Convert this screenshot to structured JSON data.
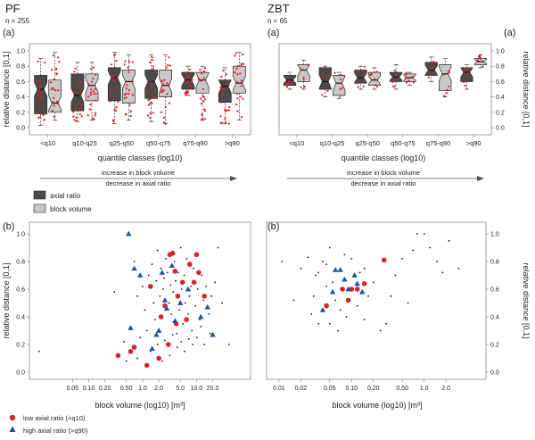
{
  "colors": {
    "axial": "#4a4a4a",
    "volume": "#c8c8c8",
    "point_red": "#dd1f26",
    "point_blue": "#1f4e9c",
    "point_black": "#111111"
  },
  "chart_data": [
    {
      "id": "pf-box",
      "type": "box",
      "title": "PF",
      "subtitle": "n = 255",
      "panel_label": "(a)",
      "xlabel": "quantile classes (log10)",
      "ylabel": "relative distance [0,1]",
      "ylim": [
        0,
        1
      ],
      "yticks": [
        "0.0",
        "0.2",
        "0.4",
        "0.6",
        "0.8",
        "1.0"
      ],
      "categories": [
        "<q10",
        "q10-q25",
        "q25-q50",
        "q50-q75",
        "q75-q90",
        ">q90"
      ],
      "series": [
        {
          "name": "axial ratio",
          "boxes": [
            {
              "min": 0.03,
              "q1": 0.18,
              "median": 0.5,
              "q3": 0.68,
              "max": 0.9
            },
            {
              "min": 0.08,
              "q1": 0.22,
              "median": 0.42,
              "q3": 0.7,
              "max": 0.85
            },
            {
              "min": 0.05,
              "q1": 0.35,
              "median": 0.65,
              "q3": 0.78,
              "max": 0.98
            },
            {
              "min": 0.08,
              "q1": 0.38,
              "median": 0.6,
              "q3": 0.75,
              "max": 0.95
            },
            {
              "min": 0.42,
              "q1": 0.5,
              "median": 0.62,
              "q3": 0.72,
              "max": 0.8
            },
            {
              "min": 0.05,
              "q1": 0.33,
              "median": 0.54,
              "q3": 0.62,
              "max": 0.78
            }
          ]
        },
        {
          "name": "block volume",
          "boxes": [
            {
              "min": 0.1,
              "q1": 0.2,
              "median": 0.32,
              "q3": 0.62,
              "max": 0.98
            },
            {
              "min": 0.1,
              "q1": 0.35,
              "median": 0.55,
              "q3": 0.7,
              "max": 0.85
            },
            {
              "min": 0.1,
              "q1": 0.32,
              "median": 0.6,
              "q3": 0.75,
              "max": 0.95
            },
            {
              "min": 0.05,
              "q1": 0.4,
              "median": 0.55,
              "q3": 0.75,
              "max": 0.95
            },
            {
              "min": 0.1,
              "q1": 0.45,
              "median": 0.62,
              "q3": 0.72,
              "max": 0.8
            },
            {
              "min": 0.1,
              "q1": 0.45,
              "median": 0.58,
              "q3": 0.8,
              "max": 0.98
            }
          ]
        }
      ]
    },
    {
      "id": "zbt-box",
      "type": "box",
      "title": "ZBT",
      "subtitle": "n = 65",
      "panel_label_left": "(a)",
      "panel_label_right": "(a)",
      "xlabel": "quantile classes (log10)",
      "ylabel": "relative distance [0,1]",
      "ylim": [
        0,
        1
      ],
      "yticks": [
        "0.0",
        "0.2",
        "0.4",
        "0.6",
        "0.8",
        "1.0"
      ],
      "categories": [
        "<q10",
        "q10-q25",
        "q25-q50",
        "q50-q75",
        "q75-q90",
        ">q90"
      ],
      "series": [
        {
          "name": "axial ratio",
          "boxes": [
            {
              "min": 0.5,
              "q1": 0.55,
              "median": 0.62,
              "q3": 0.68,
              "max": 0.72
            },
            {
              "min": 0.4,
              "q1": 0.5,
              "median": 0.6,
              "q3": 0.78,
              "max": 0.8
            },
            {
              "min": 0.5,
              "q1": 0.58,
              "median": 0.65,
              "q3": 0.75,
              "max": 0.8
            },
            {
              "min": 0.5,
              "q1": 0.6,
              "median": 0.66,
              "q3": 0.72,
              "max": 0.82
            },
            {
              "min": 0.6,
              "q1": 0.68,
              "median": 0.75,
              "q3": 0.85,
              "max": 0.92
            },
            {
              "min": 0.5,
              "q1": 0.6,
              "median": 0.72,
              "q3": 0.78,
              "max": 0.82
            }
          ]
        },
        {
          "name": "block volume",
          "boxes": [
            {
              "min": 0.5,
              "q1": 0.6,
              "median": 0.75,
              "q3": 0.82,
              "max": 0.88
            },
            {
              "min": 0.38,
              "q1": 0.42,
              "median": 0.58,
              "q3": 0.68,
              "max": 0.72
            },
            {
              "min": 0.5,
              "q1": 0.55,
              "median": 0.62,
              "q3": 0.72,
              "max": 0.78
            },
            {
              "min": 0.55,
              "q1": 0.6,
              "median": 0.65,
              "q3": 0.7,
              "max": 0.72
            },
            {
              "min": 0.4,
              "q1": 0.48,
              "median": 0.7,
              "q3": 0.82,
              "max": 0.9
            },
            {
              "min": 0.78,
              "q1": 0.82,
              "median": 0.86,
              "q3": 0.9,
              "max": 0.95
            }
          ]
        }
      ]
    },
    {
      "id": "pf-scatter",
      "type": "scatter",
      "panel_label": "(b)",
      "xlabel": "block volume (log10) [m³]",
      "ylabel": "relative distance [0,1]",
      "xscale": "log",
      "xlim": [
        0.01,
        80
      ],
      "ylim": [
        0,
        1
      ],
      "xticks": [
        {
          "v": 0.05,
          "label": "0.05"
        },
        {
          "v": 0.1,
          "label": "0.10"
        },
        {
          "v": 0.2,
          "label": "0.20"
        },
        {
          "v": 0.5,
          "label": "0.50"
        },
        {
          "v": 1,
          "label": "1.0"
        },
        {
          "v": 2,
          "label": "2.0"
        },
        {
          "v": 5,
          "label": "5.0"
        },
        {
          "v": 10,
          "label": "10.0"
        },
        {
          "v": 20,
          "label": "20.0"
        }
      ],
      "yticks": [
        "0.0",
        "0.2",
        "0.4",
        "0.6",
        "0.8",
        "1.0"
      ],
      "series": [
        {
          "name": "low axial ratio (<q10)",
          "marker": "circle",
          "points": [
            [
              0.35,
              0.12
            ],
            [
              0.6,
              0.15
            ],
            [
              0.7,
              0.18
            ],
            [
              1.2,
              0.05
            ],
            [
              1.4,
              0.62
            ],
            [
              2.2,
              0.4
            ],
            [
              2.6,
              0.48
            ],
            [
              3.2,
              0.85
            ],
            [
              3.6,
              0.86
            ],
            [
              4.0,
              0.73
            ],
            [
              4.5,
              0.55
            ],
            [
              5.5,
              0.65
            ],
            [
              7.5,
              0.78
            ],
            [
              9.0,
              0.65
            ],
            [
              10.0,
              0.85
            ],
            [
              11.0,
              0.72
            ],
            [
              14.0,
              0.55
            ],
            [
              3.0,
              0.2
            ],
            [
              4.2,
              0.35
            ],
            [
              6.5,
              0.38
            ],
            [
              2.0,
              0.1
            ]
          ]
        },
        {
          "name": "high axial ratio (>q90)",
          "marker": "triangle",
          "points": [
            [
              0.55,
              1.0
            ],
            [
              0.6,
              0.32
            ],
            [
              0.7,
              0.75
            ],
            [
              0.9,
              0.7
            ],
            [
              1.5,
              0.17
            ],
            [
              1.8,
              0.27
            ],
            [
              2.3,
              0.72
            ],
            [
              2.6,
              0.52
            ],
            [
              2.8,
              0.46
            ],
            [
              3.5,
              0.77
            ],
            [
              4.0,
              0.37
            ],
            [
              7.0,
              0.6
            ],
            [
              12.0,
              0.4
            ],
            [
              16.0,
              0.47
            ],
            [
              20.0,
              0.27
            ],
            [
              2.0,
              0.3
            ],
            [
              5.0,
              0.5
            ]
          ]
        },
        {
          "name": "other",
          "marker": "dot",
          "points": [
            [
              0.012,
              0.15
            ],
            [
              0.3,
              0.58
            ],
            [
              0.7,
              0.8
            ],
            [
              0.8,
              0.55
            ],
            [
              1.0,
              0.62
            ],
            [
              1.1,
              0.45
            ],
            [
              1.3,
              0.7
            ],
            [
              1.5,
              0.78
            ],
            [
              1.6,
              0.5
            ],
            [
              1.7,
              0.38
            ],
            [
              1.8,
              0.66
            ],
            [
              1.9,
              0.88
            ],
            [
              2.1,
              0.55
            ],
            [
              2.2,
              0.75
            ],
            [
              2.4,
              0.6
            ],
            [
              2.5,
              0.68
            ],
            [
              2.7,
              0.82
            ],
            [
              2.9,
              0.72
            ],
            [
              3.1,
              0.5
            ],
            [
              3.3,
              0.63
            ],
            [
              3.4,
              0.42
            ],
            [
              3.7,
              0.58
            ],
            [
              3.9,
              0.8
            ],
            [
              4.1,
              0.66
            ],
            [
              4.3,
              0.28
            ],
            [
              4.6,
              0.72
            ],
            [
              4.8,
              0.45
            ],
            [
              5.1,
              0.9
            ],
            [
              5.3,
              0.6
            ],
            [
              5.6,
              0.35
            ],
            [
              5.9,
              0.7
            ],
            [
              6.2,
              0.5
            ],
            [
              6.6,
              0.82
            ],
            [
              7.0,
              0.42
            ],
            [
              7.4,
              0.55
            ],
            [
              7.8,
              0.62
            ],
            [
              8.2,
              0.3
            ],
            [
              8.8,
              0.75
            ],
            [
              9.5,
              0.48
            ],
            [
              10.5,
              0.6
            ],
            [
              11.5,
              0.38
            ],
            [
              12.5,
              0.7
            ],
            [
              13.5,
              0.52
            ],
            [
              15.0,
              0.62
            ],
            [
              17.0,
              0.42
            ],
            [
              19.0,
              0.55
            ],
            [
              22.0,
              0.65
            ],
            [
              25.0,
              0.9
            ],
            [
              30.0,
              0.5
            ],
            [
              40.0,
              0.2
            ],
            [
              1.2,
              0.3
            ],
            [
              0.9,
              0.25
            ],
            [
              0.8,
              0.1
            ],
            [
              1.4,
              0.15
            ],
            [
              1.9,
              0.2
            ],
            [
              2.3,
              0.08
            ],
            [
              2.6,
              0.23
            ],
            [
              3.2,
              0.12
            ],
            [
              3.6,
              0.27
            ],
            [
              4.4,
              0.18
            ],
            [
              5.2,
              0.22
            ],
            [
              6.0,
              0.15
            ],
            [
              7.2,
              0.24
            ],
            [
              8.5,
              0.2
            ],
            [
              10.2,
              0.25
            ],
            [
              12.0,
              0.33
            ],
            [
              14.0,
              0.2
            ],
            [
              18.0,
              0.28
            ],
            [
              0.5,
              0.08
            ],
            [
              0.45,
              0.22
            ]
          ]
        }
      ]
    },
    {
      "id": "zbt-scatter",
      "type": "scatter",
      "panel_label": "(b)",
      "xlabel": "block volume (log10) [m³]",
      "ylabel": "relative distance [0,1]",
      "xscale": "log",
      "xlim": [
        0.008,
        6
      ],
      "ylim": [
        0,
        1
      ],
      "xticks": [
        {
          "v": 0.01,
          "label": "0.01"
        },
        {
          "v": 0.02,
          "label": "0.02"
        },
        {
          "v": 0.05,
          "label": "0.05"
        },
        {
          "v": 0.1,
          "label": "0.10"
        },
        {
          "v": 0.2,
          "label": "0.20"
        },
        {
          "v": 0.5,
          "label": "0.50"
        },
        {
          "v": 1,
          "label": "1.0"
        },
        {
          "v": 2,
          "label": "2.0"
        }
      ],
      "yticks": [
        "0.0",
        "0.2",
        "0.4",
        "0.6",
        "0.8",
        "1.0"
      ],
      "series": [
        {
          "name": "low axial ratio (<q10)",
          "marker": "circle",
          "points": [
            [
              0.045,
              0.48
            ],
            [
              0.075,
              0.6
            ],
            [
              0.09,
              0.52
            ],
            [
              0.1,
              0.6
            ],
            [
              0.12,
              0.6
            ],
            [
              0.15,
              0.64
            ],
            [
              0.28,
              0.81
            ]
          ]
        },
        {
          "name": "high axial ratio (>q90)",
          "marker": "triangle",
          "points": [
            [
              0.04,
              0.45
            ],
            [
              0.055,
              0.58
            ],
            [
              0.06,
              0.74
            ],
            [
              0.07,
              0.74
            ],
            [
              0.08,
              0.67
            ],
            [
              0.09,
              0.6
            ],
            [
              0.11,
              0.7
            ],
            [
              0.12,
              0.64
            ],
            [
              0.14,
              0.58
            ]
          ]
        },
        {
          "name": "other",
          "marker": "dot",
          "points": [
            [
              0.011,
              0.8
            ],
            [
              0.016,
              0.52
            ],
            [
              0.02,
              0.75
            ],
            [
              0.025,
              0.83
            ],
            [
              0.028,
              0.42
            ],
            [
              0.03,
              0.55
            ],
            [
              0.032,
              0.7
            ],
            [
              0.035,
              0.35
            ],
            [
              0.04,
              0.8
            ],
            [
              0.045,
              0.62
            ],
            [
              0.05,
              0.9
            ],
            [
              0.055,
              0.65
            ],
            [
              0.06,
              0.52
            ],
            [
              0.065,
              0.3
            ],
            [
              0.07,
              0.45
            ],
            [
              0.08,
              0.85
            ],
            [
              0.085,
              0.4
            ],
            [
              0.1,
              0.82
            ],
            [
              0.12,
              0.48
            ],
            [
              0.13,
              0.72
            ],
            [
              0.15,
              0.75
            ],
            [
              0.17,
              0.55
            ],
            [
              0.2,
              0.65
            ],
            [
              0.25,
              0.3
            ],
            [
              0.3,
              0.35
            ],
            [
              0.4,
              0.7
            ],
            [
              0.5,
              0.82
            ],
            [
              0.6,
              0.5
            ],
            [
              0.7,
              0.88
            ],
            [
              0.8,
              1.0
            ],
            [
              1.0,
              1.0
            ],
            [
              1.2,
              0.9
            ],
            [
              1.5,
              0.8
            ],
            [
              1.8,
              0.72
            ],
            [
              2.2,
              0.95
            ],
            [
              3.0,
              0.75
            ],
            [
              0.035,
              0.72
            ],
            [
              0.045,
              0.78
            ],
            [
              0.05,
              0.35
            ],
            [
              0.15,
              0.38
            ],
            [
              0.35,
              0.55
            ]
          ]
        }
      ]
    }
  ],
  "arrows": [
    {
      "top": "increase in block volume",
      "bottom": "decrease in axial ratio"
    },
    {
      "top": "increase in block volume",
      "bottom": "decrease in axial ratio"
    }
  ],
  "legend_box": [
    "axial ratio",
    "block volume"
  ],
  "legend_points": [
    "low axial ratio (<q10)",
    "high axial ratio (>q90)"
  ]
}
